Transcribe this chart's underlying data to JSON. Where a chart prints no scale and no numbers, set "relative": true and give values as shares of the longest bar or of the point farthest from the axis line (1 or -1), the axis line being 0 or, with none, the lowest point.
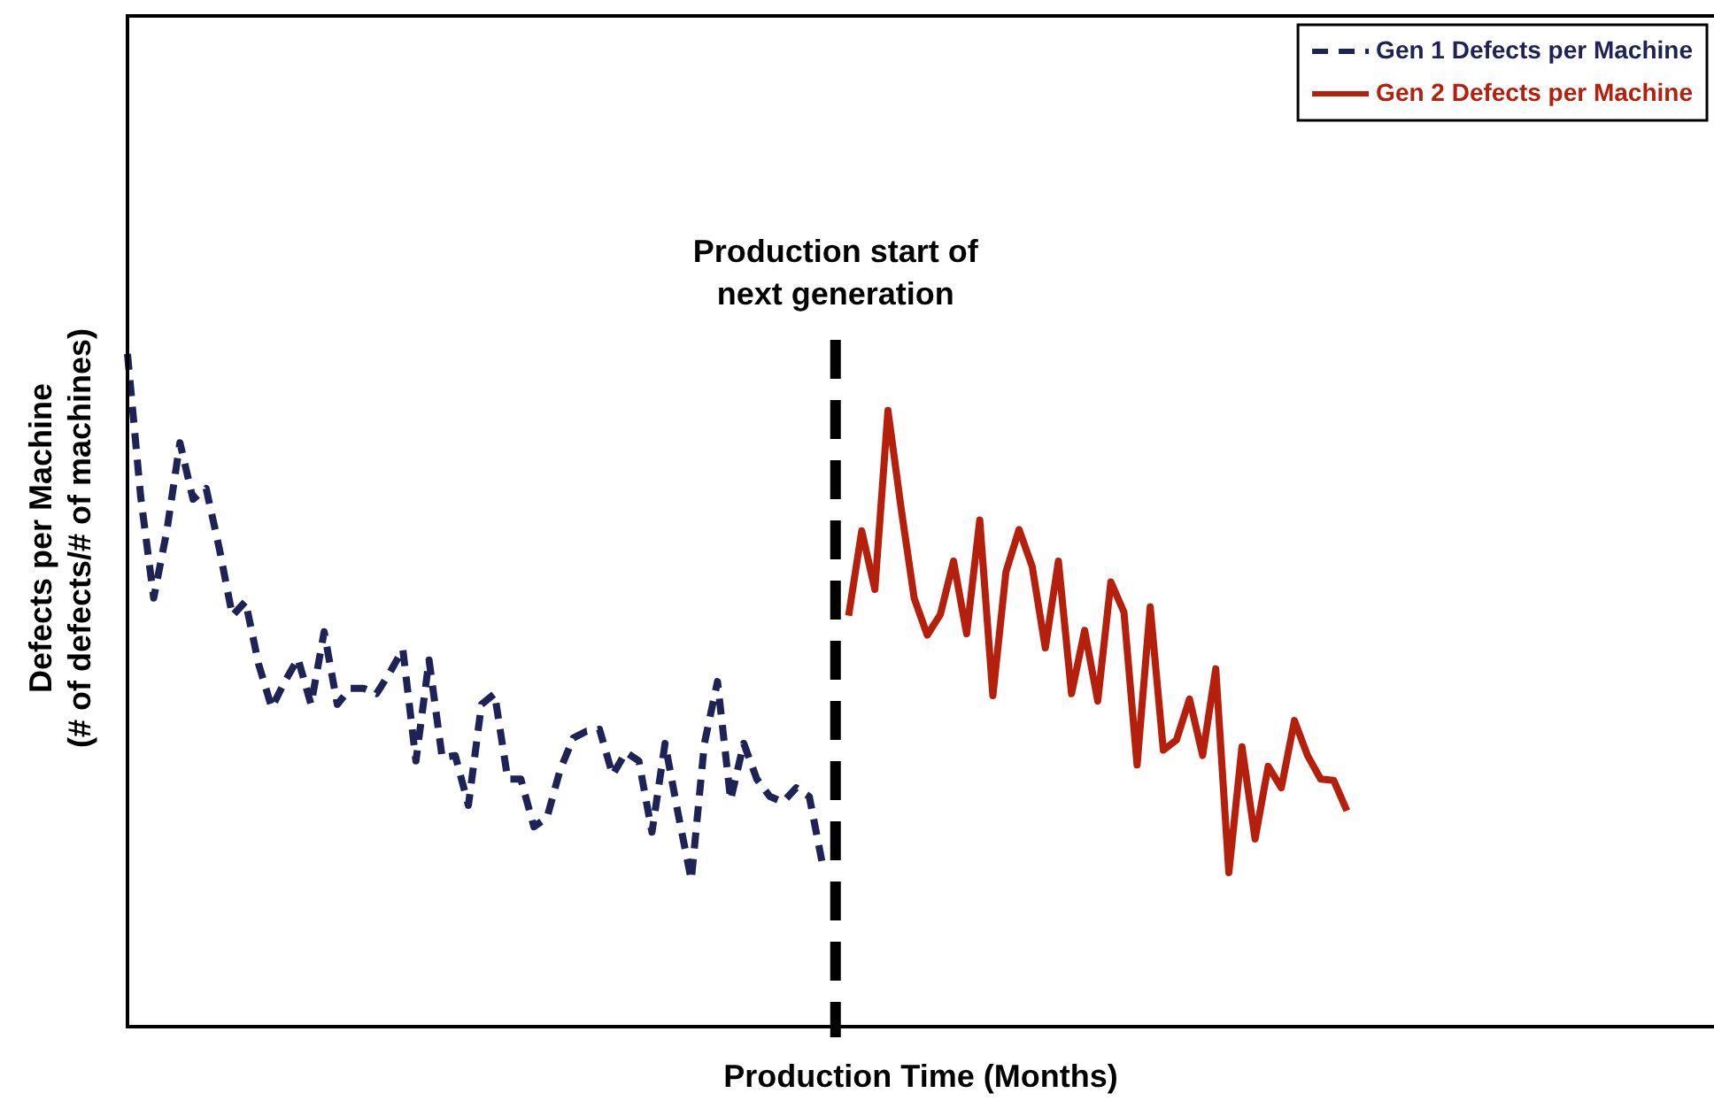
{
  "chart_data": {
    "type": "line",
    "relative": true,
    "xlabel": "Production Time (Months)",
    "ylabel": "Defects per Machine (# of defects/# of machines)",
    "legend": "top right",
    "line_style": "solid",
    "marker": "none",
    "categories": [
      null,
      null,
      null,
      null,
      null,
      null,
      null,
      null,
      null,
      null,
      null,
      null,
      null,
      null,
      null,
      null,
      null,
      null,
      null,
      null,
      null,
      null,
      null,
      null,
      null,
      null,
      null,
      null,
      null,
      null,
      null,
      null,
      null,
      null,
      null,
      null,
      null,
      null,
      null,
      null,
      null,
      null,
      null,
      null,
      null,
      null,
      null,
      null,
      null,
      null,
      null,
      null,
      null,
      null,
      null,
      null,
      null,
      null,
      null,
      null,
      null,
      null,
      null,
      null,
      null,
      null,
      null,
      null,
      null,
      null,
      null,
      null,
      null,
      null,
      null,
      null,
      null,
      null,
      null,
      null,
      null,
      null,
      null,
      null,
      null,
      null,
      null,
      null,
      null,
      null,
      null,
      null,
      null,
      null,
      null,
      null,
      null,
      null,
      null,
      null,
      null,
      null,
      null,
      null,
      null,
      null,
      null,
      null,
      null,
      null,
      null,
      null,
      null,
      null,
      null,
      null,
      null,
      null,
      null,
      null,
      null,
      null
    ],
    "series": [
      {
        "name": "Gen 1 Defects per Machine",
        "color": "#1f2255",
        "line_style": "dashed",
        "values": [
          1.0,
          0.789,
          0.637,
          0.737,
          0.868,
          0.784,
          0.8,
          0.711,
          0.611,
          0.632,
          0.539,
          0.474,
          0.513,
          0.547,
          0.479,
          0.587,
          0.479,
          0.503,
          0.503,
          0.495,
          0.526,
          0.561,
          0.395,
          0.545,
          0.4,
          0.403,
          0.329,
          0.479,
          0.495,
          0.368,
          0.368,
          0.297,
          0.311,
          0.382,
          0.429,
          0.439,
          0.442,
          0.374,
          0.408,
          0.395,
          0.289,
          0.421,
          0.316,
          0.218,
          0.421,
          0.513,
          0.337,
          0.421,
          0.368,
          0.342,
          0.334,
          0.355,
          0.342,
          0.242,
          null,
          null,
          null,
          null,
          null,
          null,
          null,
          null,
          null,
          null,
          null,
          null,
          null,
          null,
          null,
          null,
          null,
          null,
          null,
          null,
          null,
          null,
          null,
          null,
          null,
          null,
          null,
          null,
          null,
          null,
          null,
          null,
          null,
          null,
          null,
          null,
          null,
          null,
          null,
          null,
          null,
          null,
          null,
          null,
          null,
          null,
          null,
          null,
          null,
          null,
          null,
          null,
          null,
          null,
          null,
          null,
          null,
          null,
          null,
          null,
          null,
          null,
          null,
          null,
          null,
          null,
          null,
          null
        ]
      },
      {
        "name": "Gen 2 Defects per Machine",
        "color": "#b5200d",
        "values": [
          null,
          null,
          null,
          null,
          null,
          null,
          null,
          null,
          null,
          null,
          null,
          null,
          null,
          null,
          null,
          null,
          null,
          null,
          null,
          null,
          null,
          null,
          null,
          null,
          null,
          null,
          null,
          null,
          null,
          null,
          null,
          null,
          null,
          null,
          null,
          null,
          null,
          null,
          null,
          null,
          null,
          null,
          null,
          null,
          null,
          null,
          null,
          null,
          null,
          null,
          null,
          null,
          null,
          null,
          null,
          0.611,
          0.737,
          0.65,
          0.916,
          0.771,
          0.637,
          0.582,
          0.613,
          0.692,
          0.584,
          0.753,
          0.492,
          0.676,
          0.739,
          0.684,
          0.563,
          0.692,
          0.495,
          0.589,
          0.484,
          0.661,
          0.616,
          0.389,
          0.624,
          0.411,
          0.426,
          0.487,
          0.403,
          0.532,
          0.229,
          0.416,
          0.279,
          0.387,
          0.355,
          0.455,
          0.403,
          0.368,
          0.366,
          0.321,
          null,
          null,
          null,
          null,
          null,
          null,
          null,
          null,
          null,
          null,
          null,
          null,
          null,
          null,
          null,
          null,
          null,
          null,
          null,
          null,
          null,
          null,
          null,
          null,
          null,
          null,
          null,
          null
        ]
      }
    ],
    "annotations": [
      "Production start of next generation"
    ]
  }
}
